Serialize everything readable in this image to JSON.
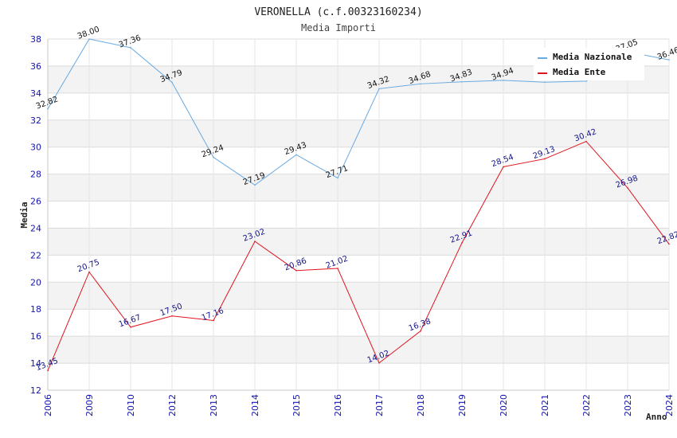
{
  "chart_data": {
    "type": "line",
    "title": "VERONELLA (c.f.00323160234)",
    "subtitle": "Media Importi",
    "xlabel": "Anno",
    "ylabel": "Media",
    "ylim": [
      12,
      38
    ],
    "yticks": [
      12,
      14,
      16,
      18,
      20,
      22,
      24,
      26,
      28,
      30,
      32,
      34,
      36,
      38
    ],
    "categories": [
      "2006",
      "2009",
      "2010",
      "2012",
      "2013",
      "2014",
      "2015",
      "2016",
      "2017",
      "2018",
      "2019",
      "2020",
      "2021",
      "2022",
      "2023",
      "2024"
    ],
    "legend_position": "top-right",
    "series": [
      {
        "name": "Media Nazionale",
        "color": "#6aa9e0",
        "values": [
          32.82,
          38.0,
          37.36,
          34.79,
          29.24,
          27.19,
          29.43,
          27.71,
          34.32,
          34.68,
          34.83,
          34.94,
          34.8,
          34.88,
          37.05,
          36.46
        ],
        "labels": [
          "32.82",
          "38.00",
          "37.36",
          "34.79",
          "29.24",
          "27.19",
          "29.43",
          "27.71",
          "34.32",
          "34.68",
          "34.83",
          "34.94",
          "",
          "",
          "37.05",
          "36.46"
        ]
      },
      {
        "name": "Media Ente",
        "color": "#e0141e",
        "values": [
          13.45,
          20.75,
          16.67,
          17.5,
          17.16,
          23.02,
          20.86,
          21.02,
          14.02,
          16.38,
          22.91,
          28.54,
          29.13,
          30.42,
          26.98,
          22.82
        ],
        "labels": [
          "13.45",
          "20.75",
          "16.67",
          "17.50",
          "17.16",
          "23.02",
          "20.86",
          "21.02",
          "14.02",
          "16.38",
          "22.91",
          "28.54",
          "29.13",
          "30.42",
          "26.98",
          "22.82"
        ]
      }
    ]
  }
}
